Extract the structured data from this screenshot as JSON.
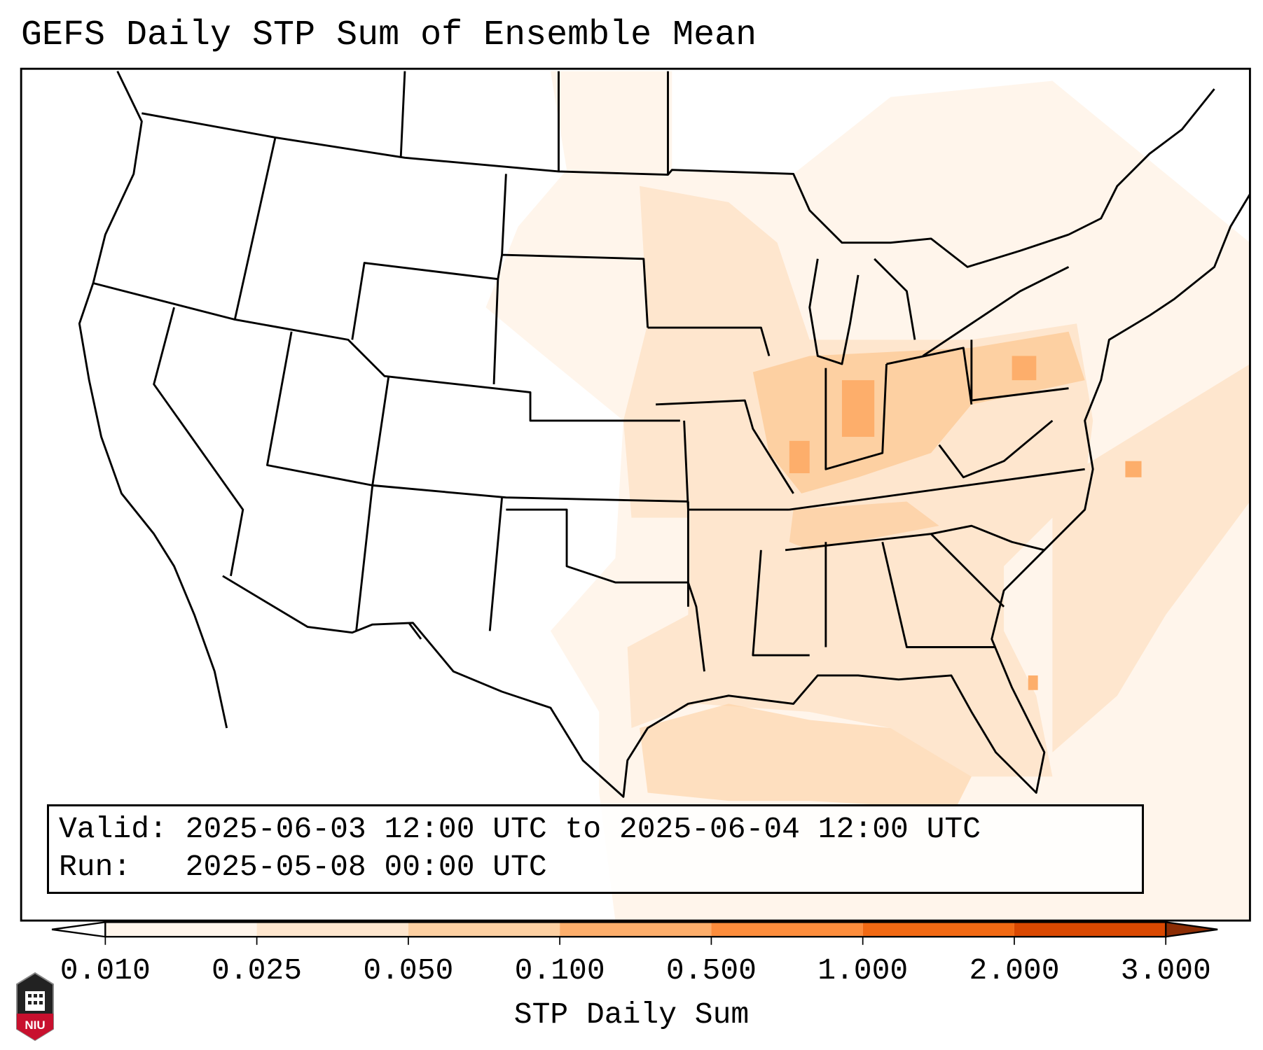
{
  "title": "GEFS Daily STP Sum of Ensemble Mean",
  "info": {
    "valid_label": "Valid:",
    "valid_value": "2025-06-03 12:00 UTC to 2025-06-04 12:00 UTC",
    "run_label": "Run:",
    "run_value": "2025-05-08 00:00 UTC"
  },
  "colorbar": {
    "label": "STP Daily Sum",
    "ticks": [
      "0.010",
      "0.025",
      "0.050",
      "0.100",
      "0.500",
      "1.000",
      "2.000",
      "3.000"
    ],
    "colors": [
      "#fff5eb",
      "#fee6ce",
      "#fdd0a2",
      "#fdae6b",
      "#fd8d3c",
      "#f16913",
      "#d94801"
    ],
    "under_color": "#ffffff",
    "over_color": "#8c2d04"
  },
  "logo": {
    "text": "NIU"
  }
}
